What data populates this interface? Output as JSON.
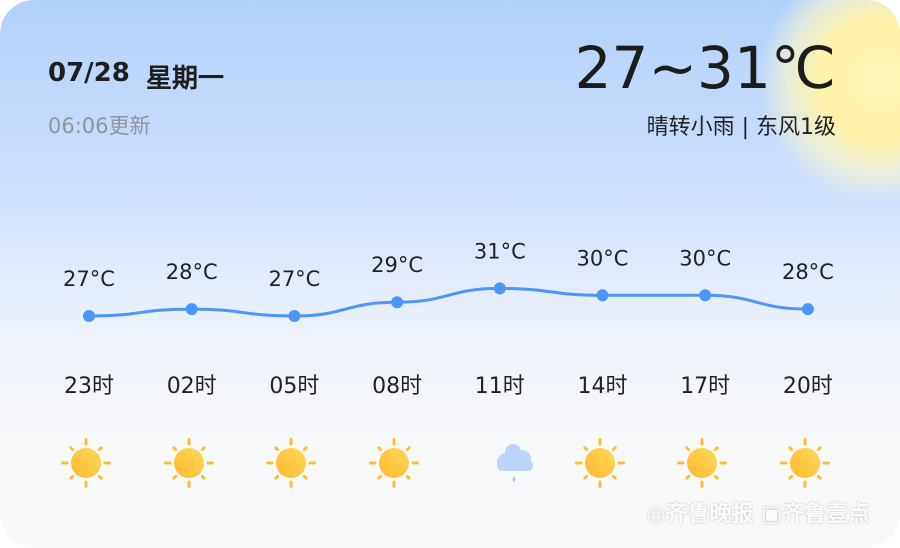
{
  "header": {
    "date": "07/28",
    "weekday": "星期一",
    "updated": "06:06更新",
    "temp_range": "27~31℃",
    "description": "晴转小雨 | 东风1级"
  },
  "colors": {
    "line": "#4c96fb",
    "sun": "#ffc43a",
    "cloud": "#a9cbfb"
  },
  "hourly": [
    {
      "hour": "23时",
      "temp": 27,
      "temp_label": "27°C",
      "icon": "sunny"
    },
    {
      "hour": "02时",
      "temp": 28,
      "temp_label": "28°C",
      "icon": "sunny"
    },
    {
      "hour": "05时",
      "temp": 27,
      "temp_label": "27°C",
      "icon": "sunny"
    },
    {
      "hour": "08时",
      "temp": 29,
      "temp_label": "29°C",
      "icon": "sunny"
    },
    {
      "hour": "11时",
      "temp": 31,
      "temp_label": "31°C",
      "icon": "light-rain"
    },
    {
      "hour": "14时",
      "temp": 30,
      "temp_label": "30°C",
      "icon": "sunny"
    },
    {
      "hour": "17时",
      "temp": 30,
      "temp_label": "30°C",
      "icon": "sunny"
    },
    {
      "hour": "20时",
      "temp": 28,
      "temp_label": "28°C",
      "icon": "sunny"
    }
  ],
  "watermark": "齐鲁晚报 齐鲁壹点"
}
